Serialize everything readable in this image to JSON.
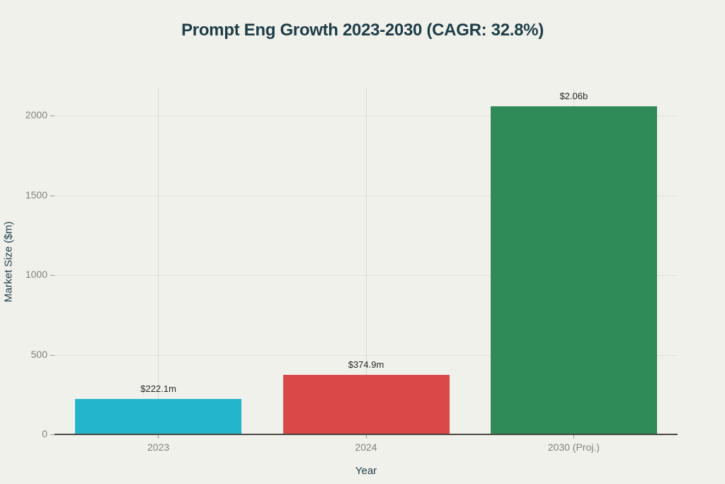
{
  "chart_data": {
    "type": "bar",
    "title": "Prompt Eng Growth 2023-2030 (CAGR: 32.8%)",
    "xlabel": "Year",
    "ylabel": "Market Size ($m)",
    "categories": [
      "2023",
      "2024",
      "2030 (Proj.)"
    ],
    "values": [
      222.1,
      374.9,
      2060
    ],
    "value_labels": [
      "$222.1m",
      "$374.9m",
      "$2.06b"
    ],
    "bar_colors": [
      "#23b5cb",
      "#da4848",
      "#2f8b57"
    ],
    "ylim": [
      0,
      2170
    ],
    "yticks": [
      0,
      500,
      1000,
      1500,
      2000
    ],
    "grid": true,
    "legend": false
  },
  "colors": {
    "background": "#f1f1ec",
    "title_text": "#1d3d47",
    "axis_label_text": "#1d3d47",
    "tick_text": "#82827c",
    "value_label_text": "#262626",
    "gridline_h": "#e2e2dc",
    "gridline_v": "#d9d9d3",
    "tick_mark": "#9a9a94",
    "axis_line": "#4a4843"
  }
}
